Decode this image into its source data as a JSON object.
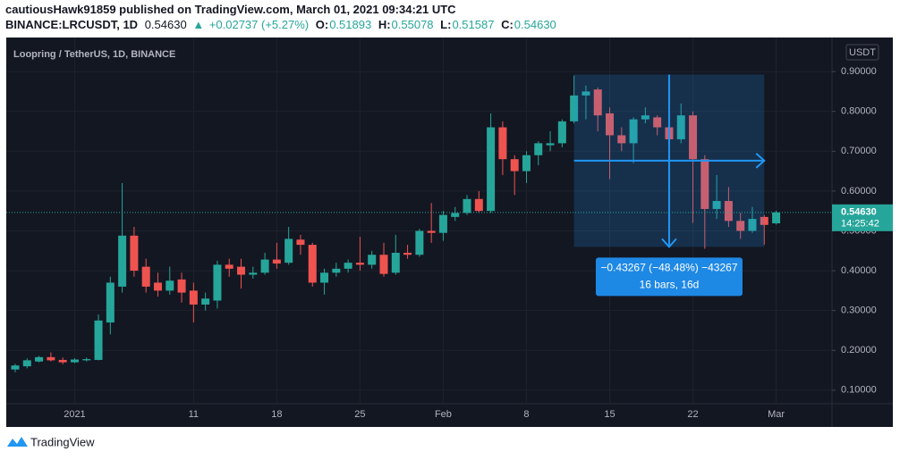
{
  "header": {
    "publisher": "cautiousHawk91859 published on TradingView.com, March 01, 2021 09:34:21 UTC",
    "symbol": "BINANCE:LRCUSDT, 1D",
    "last": "0.54630",
    "change": "+0.02737 (+5.27%)",
    "ohlc": [
      {
        "key": "O:",
        "value": "0.51893"
      },
      {
        "key": "H:",
        "value": "0.55078"
      },
      {
        "key": "L:",
        "value": "0.51587"
      },
      {
        "key": "C:",
        "value": "0.54630"
      }
    ]
  },
  "chart_data": {
    "type": "candlestick",
    "title": "Loopring / TetherUS, 1D, BINANCE",
    "currency": "USDT",
    "up_color": "#26a69a",
    "down_color": "#ef5350",
    "grid": true,
    "categories": [
      null,
      null,
      null,
      null,
      null,
      "2021",
      null,
      null,
      null,
      null,
      null,
      null,
      null,
      null,
      null,
      "11",
      null,
      null,
      null,
      null,
      null,
      null,
      "18",
      null,
      null,
      null,
      null,
      null,
      null,
      "25",
      null,
      null,
      null,
      null,
      null,
      null,
      "Feb",
      null,
      null,
      null,
      null,
      null,
      null,
      "8",
      null,
      null,
      null,
      null,
      null,
      null,
      "15",
      null,
      null,
      null,
      null,
      null,
      null,
      "22",
      null,
      null,
      null,
      null,
      null,
      null,
      "Mar"
    ],
    "open": [
      0.152,
      0.16,
      0.172,
      0.183,
      0.176,
      0.17,
      0.175,
      0.176,
      0.27,
      0.36,
      0.488,
      0.41,
      0.37,
      0.35,
      0.378,
      0.35,
      0.315,
      0.325,
      0.415,
      0.41,
      0.39,
      0.395,
      0.428,
      0.42,
      0.478,
      0.465,
      0.37,
      0.395,
      0.405,
      0.42,
      0.415,
      0.44,
      0.395,
      0.445,
      0.44,
      0.5,
      0.495,
      0.535,
      0.545,
      0.58,
      0.55,
      0.76,
      0.68,
      0.65,
      0.69,
      0.715,
      0.72,
      0.775,
      0.84,
      0.855,
      0.795,
      0.74,
      0.72,
      0.78,
      0.785,
      0.76,
      0.73,
      0.79,
      0.68,
      0.555,
      0.575,
      0.525,
      0.5,
      0.535,
      0.51893
    ],
    "high": [
      0.166,
      0.18,
      0.186,
      0.195,
      0.182,
      0.18,
      0.182,
      0.29,
      0.385,
      0.62,
      0.51,
      0.43,
      0.395,
      0.41,
      0.395,
      0.37,
      0.345,
      0.425,
      0.43,
      0.43,
      0.41,
      0.445,
      0.47,
      0.51,
      0.49,
      0.47,
      0.405,
      0.42,
      0.428,
      0.485,
      0.45,
      0.47,
      0.49,
      0.465,
      0.505,
      0.57,
      0.55,
      0.56,
      0.59,
      0.6,
      0.795,
      0.775,
      0.69,
      0.7,
      0.725,
      0.75,
      0.78,
      0.89,
      0.865,
      0.86,
      0.81,
      0.76,
      0.785,
      0.81,
      0.79,
      0.78,
      0.82,
      0.8,
      0.69,
      0.64,
      0.61,
      0.545,
      0.56,
      0.54,
      0.55078
    ],
    "low": [
      0.145,
      0.155,
      0.17,
      0.172,
      0.165,
      0.168,
      0.172,
      0.175,
      0.24,
      0.345,
      0.385,
      0.345,
      0.335,
      0.34,
      0.32,
      0.27,
      0.3,
      0.305,
      0.385,
      0.355,
      0.38,
      0.39,
      0.405,
      0.415,
      0.44,
      0.36,
      0.34,
      0.385,
      0.395,
      0.4,
      0.405,
      0.385,
      0.39,
      0.43,
      0.435,
      0.47,
      0.475,
      0.525,
      0.54,
      0.545,
      0.545,
      0.64,
      0.59,
      0.62,
      0.665,
      0.7,
      0.71,
      0.77,
      0.78,
      0.75,
      0.63,
      0.7,
      0.67,
      0.77,
      0.74,
      0.71,
      0.72,
      0.52,
      0.455,
      0.53,
      0.51,
      0.48,
      0.495,
      0.465,
      0.51587
    ],
    "close": [
      0.162,
      0.175,
      0.183,
      0.175,
      0.17,
      0.177,
      0.178,
      0.275,
      0.37,
      0.488,
      0.4,
      0.36,
      0.35,
      0.375,
      0.345,
      0.315,
      0.33,
      0.415,
      0.405,
      0.39,
      0.395,
      0.428,
      0.418,
      0.48,
      0.465,
      0.37,
      0.395,
      0.405,
      0.42,
      0.415,
      0.44,
      0.392,
      0.445,
      0.44,
      0.5,
      0.495,
      0.54,
      0.545,
      0.58,
      0.55,
      0.76,
      0.68,
      0.65,
      0.69,
      0.72,
      0.72,
      0.775,
      0.84,
      0.85,
      0.79,
      0.74,
      0.72,
      0.78,
      0.79,
      0.76,
      0.73,
      0.79,
      0.68,
      0.555,
      0.575,
      0.525,
      0.5,
      0.53,
      0.515,
      0.5463
    ],
    "ylim": [
      0.066,
      0.981
    ],
    "yticks": [
      {
        "value": 0.1,
        "label": "0.10000"
      },
      {
        "value": 0.2,
        "label": "0.20000"
      },
      {
        "value": 0.3,
        "label": "0.30000"
      },
      {
        "value": 0.4,
        "label": "0.40000"
      },
      {
        "value": 0.5,
        "label": "0.50000"
      },
      {
        "value": 0.6,
        "label": "0.60000"
      },
      {
        "value": 0.7,
        "label": "0.70000"
      },
      {
        "value": 0.8,
        "label": "0.80000"
      },
      {
        "value": 0.9,
        "label": "0.90000"
      }
    ],
    "last_price": {
      "value": 0.5463,
      "label": "0.54630"
    },
    "countdown": "14:25:42",
    "measure": {
      "from_index": 47,
      "to_index": 63,
      "from": 0.8925,
      "to": 0.45983,
      "label": "−0.43267 (−48.48%) −43267",
      "detail": "16 bars, 16d"
    }
  },
  "footer": {
    "brand": "TradingView"
  }
}
